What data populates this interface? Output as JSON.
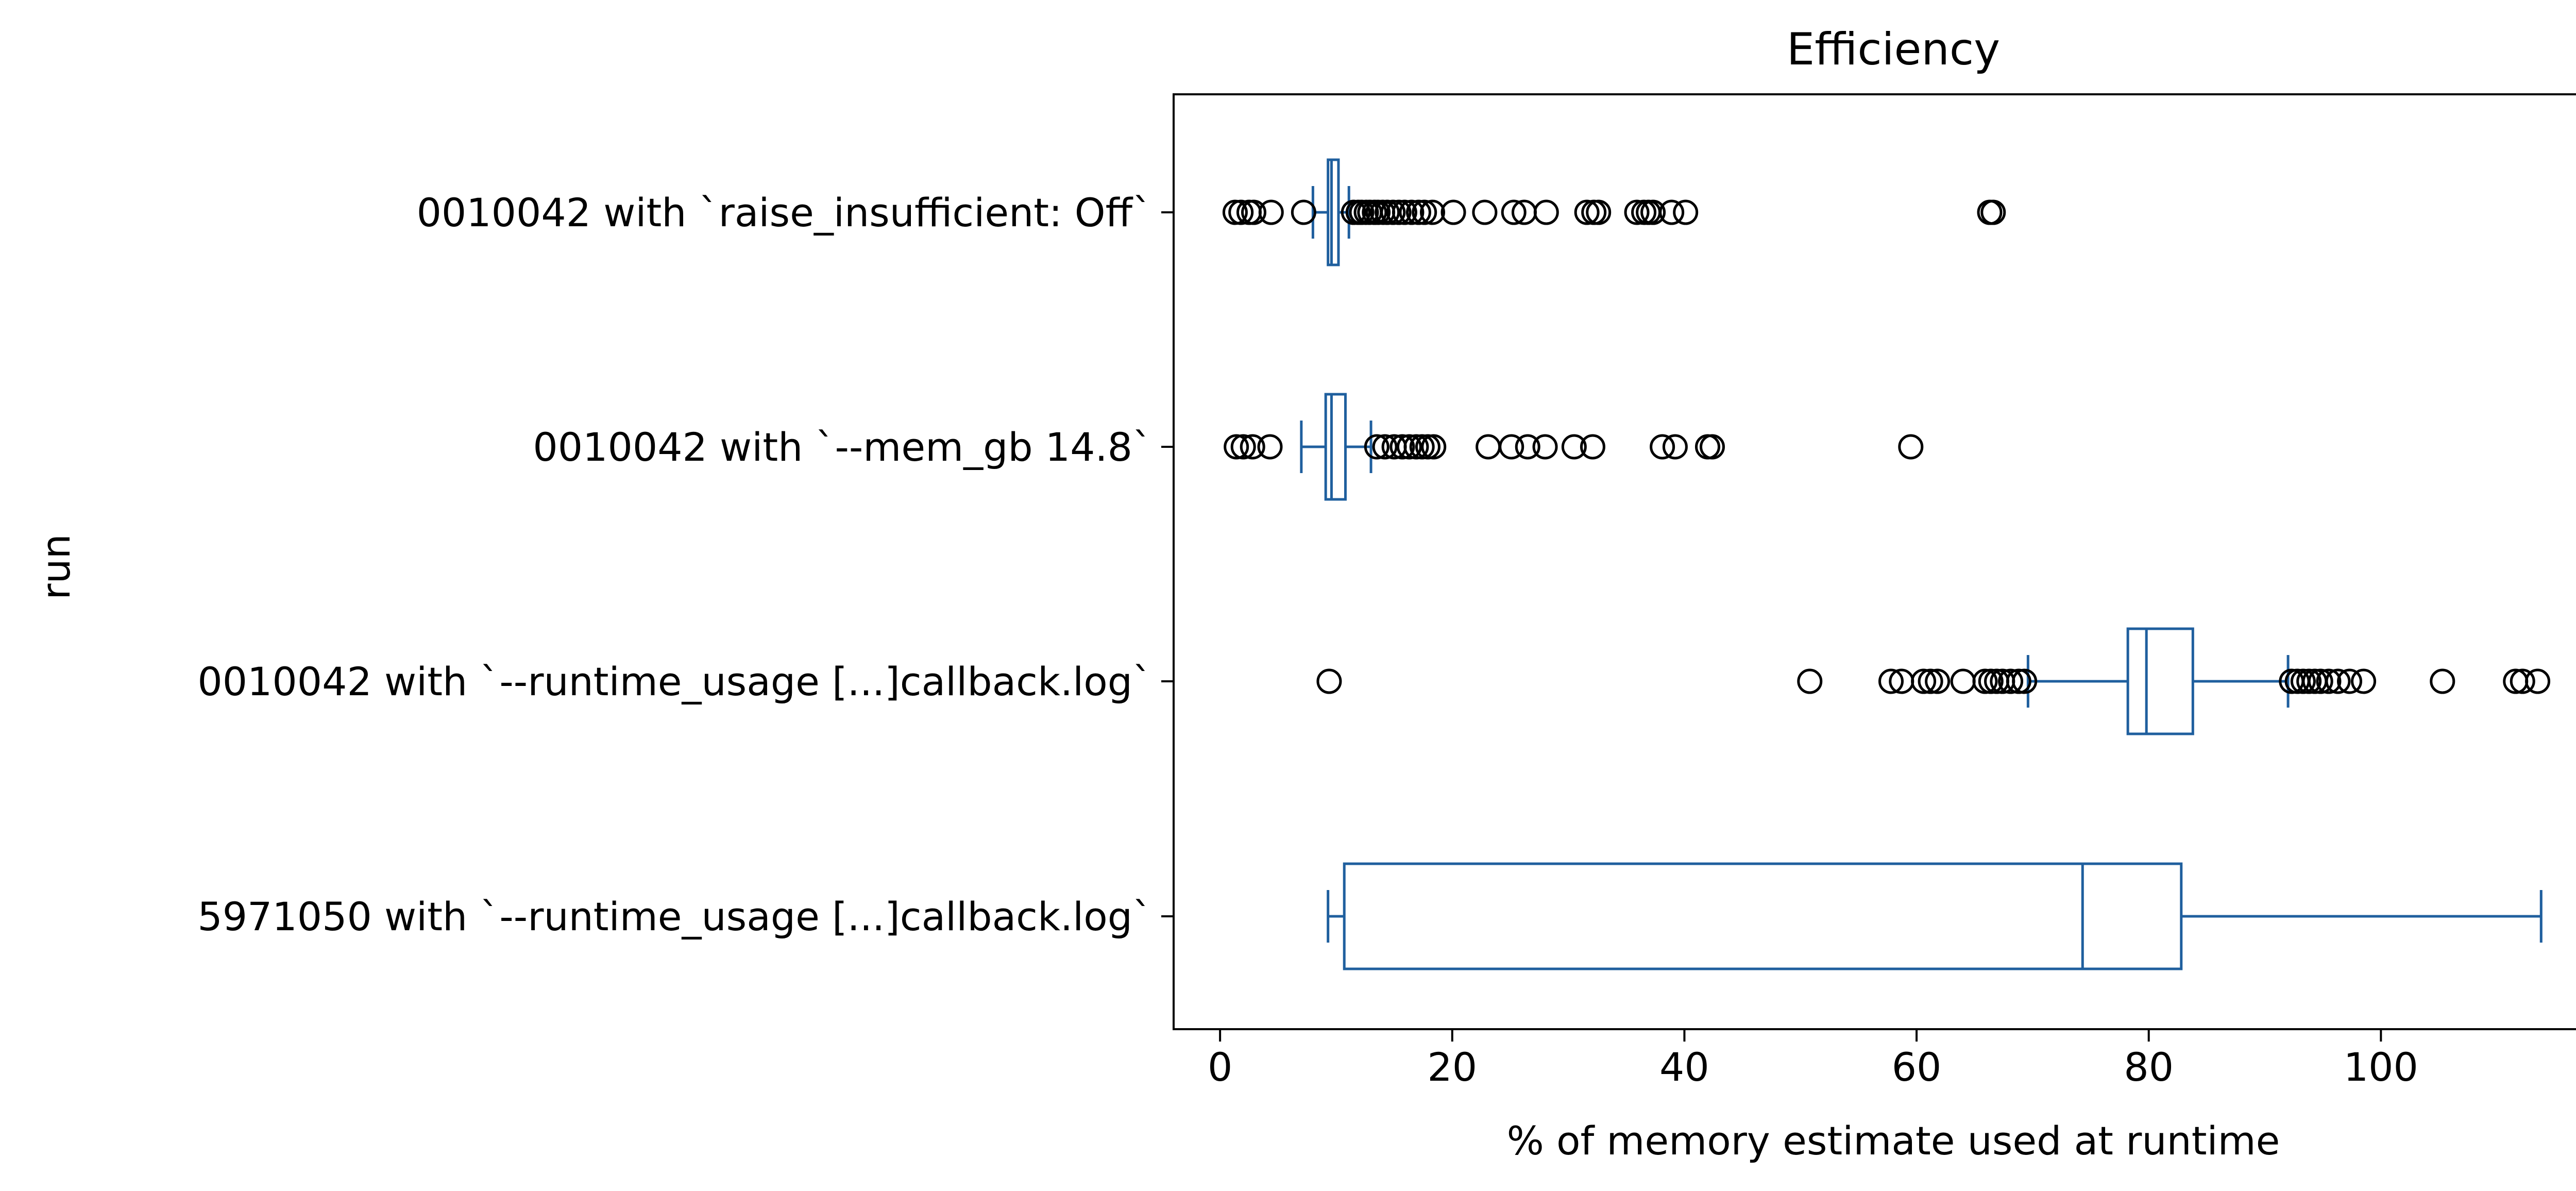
{
  "chart_data": {
    "type": "boxplot",
    "orientation": "horizontal",
    "title": "Efficiency",
    "xlabel": "% of memory estimate used at runtime",
    "ylabel": "run",
    "xlim": [
      -4,
      120
    ],
    "xticks": [
      0,
      20,
      40,
      60,
      80,
      100
    ],
    "xtick_labels": [
      "0",
      "20",
      "40",
      "60",
      "80",
      "100"
    ],
    "box_color": "#1f5f9e",
    "grid": false,
    "categories": [
      "0010042 with `raise_insufficient: Off`",
      "0010042 with `--mem_gb 14.8`",
      "0010042 with `--runtime_usage [...]callback.log`",
      "5971050 with `--runtime_usage [...]callback.log`"
    ],
    "boxes": [
      {
        "whislo": 8.0,
        "q1": 9.3,
        "med": 9.6,
        "q3": 10.2,
        "whishi": 11.1,
        "fliers": [
          1.3,
          1.8,
          2.5,
          2.9,
          4.4,
          7.2,
          11.5,
          11.9,
          12.2,
          12.6,
          12.9,
          13.3,
          13.6,
          14.0,
          14.4,
          14.9,
          15.4,
          15.9,
          16.5,
          17.1,
          17.6,
          18.3,
          20.1,
          22.8,
          25.3,
          26.2,
          28.1,
          31.6,
          32.2,
          32.6,
          35.9,
          36.5,
          36.9,
          37.3,
          38.9,
          40.1,
          66.3,
          66.6
        ]
      },
      {
        "whislo": 7.0,
        "q1": 9.1,
        "med": 9.6,
        "q3": 10.8,
        "whishi": 13.0,
        "fliers": [
          1.4,
          2.0,
          2.8,
          4.3,
          13.5,
          14.2,
          15.0,
          15.7,
          16.3,
          16.9,
          17.4,
          17.9,
          18.4,
          23.1,
          25.1,
          26.5,
          28.0,
          30.5,
          32.1,
          38.1,
          39.2,
          42.0,
          42.4,
          59.5
        ]
      },
      {
        "whislo": 69.6,
        "q1": 78.2,
        "med": 79.8,
        "q3": 83.8,
        "whishi": 92.0,
        "fliers": [
          9.4,
          50.8,
          57.8,
          58.7,
          60.6,
          61.2,
          61.8,
          64.0,
          65.9,
          66.4,
          66.9,
          67.4,
          68.1,
          68.8,
          69.3,
          92.3,
          92.8,
          93.3,
          93.8,
          94.3,
          94.8,
          95.5,
          96.3,
          97.3,
          98.5,
          105.3,
          111.6,
          112.2,
          113.5
        ]
      },
      {
        "whislo": 9.3,
        "q1": 10.7,
        "med": 74.3,
        "q3": 82.8,
        "whishi": 113.8,
        "fliers": []
      }
    ]
  }
}
